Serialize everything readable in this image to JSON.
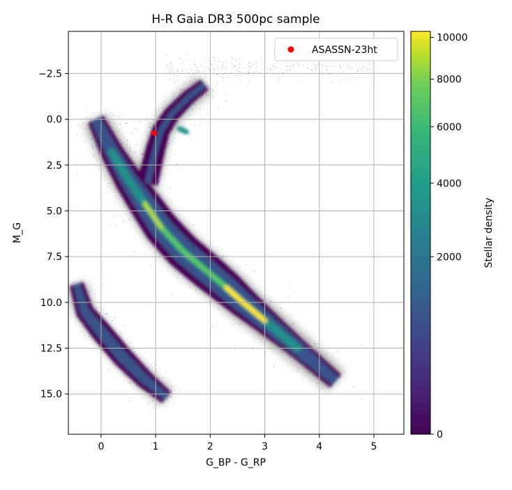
{
  "chart_data": {
    "type": "scatter",
    "title": "H-R Gaia DR3 500pc sample",
    "xlabel": "G_BP - G_RP",
    "ylabel": "M_G",
    "xlim": [
      -0.6,
      5.55
    ],
    "ylim": [
      17.2,
      -4.8
    ],
    "y_inverted": true,
    "grid": true,
    "x_ticks": [
      0,
      1,
      2,
      3,
      4,
      5
    ],
    "x_tick_labels": [
      "0",
      "1",
      "2",
      "3",
      "4",
      "5"
    ],
    "y_ticks": [
      -2.5,
      0.0,
      2.5,
      5.0,
      7.5,
      10.0,
      12.5,
      15.0
    ],
    "y_tick_labels": [
      "−2.5",
      "0.0",
      "2.5",
      "5.0",
      "7.5",
      "10.0",
      "12.5",
      "15.0"
    ],
    "density": {
      "description_source": "2D density of Gaia DR3 stars within 500 pc",
      "colormap": "viridis",
      "colorbar_label": "Stellar density",
      "colorbar_ticks": [
        0,
        2000,
        4000,
        6000,
        8000,
        10000
      ],
      "colorbar_tick_labels": [
        "0",
        "2000",
        "4000",
        "6000",
        "8000",
        "10000"
      ],
      "colorbar_range": [
        0,
        10300
      ],
      "colorbar_scale": "sqrt",
      "colors": {
        "low": "#440154",
        "mid_low": "#3b528b",
        "mid": "#21918c",
        "mid_high": "#5ec962",
        "high": "#fde725"
      },
      "main_sequence": [
        {
          "x": -0.1,
          "y": 0.0
        },
        {
          "x": 0.2,
          "y": 1.8
        },
        {
          "x": 0.5,
          "y": 3.3
        },
        {
          "x": 0.8,
          "y": 4.6
        },
        {
          "x": 1.1,
          "y": 5.9
        },
        {
          "x": 1.5,
          "y": 7.2
        },
        {
          "x": 1.9,
          "y": 8.2
        },
        {
          "x": 2.3,
          "y": 9.2
        },
        {
          "x": 2.6,
          "y": 10.0
        },
        {
          "x": 3.0,
          "y": 11.0
        },
        {
          "x": 3.6,
          "y": 12.5
        },
        {
          "x": 4.3,
          "y": 14.3
        }
      ],
      "giant_branch": [
        {
          "x": 0.85,
          "y": 3.5
        },
        {
          "x": 1.0,
          "y": 1.6
        },
        {
          "x": 1.1,
          "y": 0.6
        },
        {
          "x": 1.3,
          "y": -0.3
        },
        {
          "x": 1.6,
          "y": -1.2
        },
        {
          "x": 1.9,
          "y": -1.9
        }
      ],
      "red_clump": {
        "x": 1.5,
        "y": 0.6
      },
      "white_dwarfs": [
        {
          "x": -0.45,
          "y": 9.0
        },
        {
          "x": -0.3,
          "y": 10.5
        },
        {
          "x": 0.0,
          "y": 11.6
        },
        {
          "x": 0.4,
          "y": 13.0
        },
        {
          "x": 0.8,
          "y": 14.2
        },
        {
          "x": 1.2,
          "y": 15.2
        }
      ]
    },
    "highlight_point": {
      "name": "ASASSN-23ht",
      "x": 0.97,
      "y": 0.75,
      "color": "#ff0000"
    },
    "legend": {
      "placement": "top-right",
      "entries": [
        "ASASSN-23ht"
      ]
    }
  }
}
